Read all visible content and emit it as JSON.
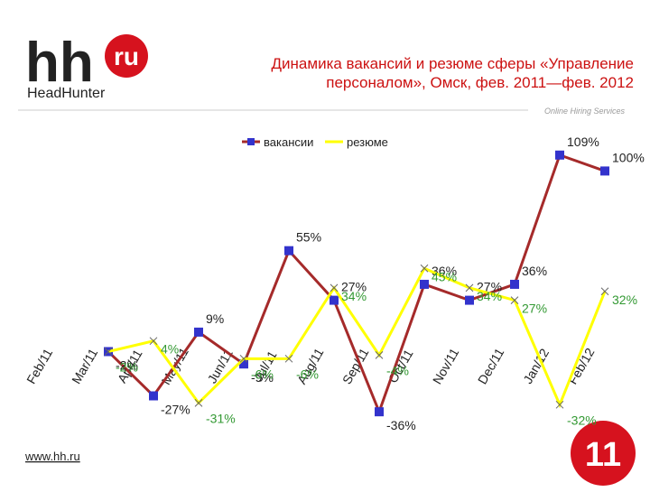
{
  "header": {
    "logo_hh": "hh",
    "logo_ru": "ru",
    "logo_name": "HeadHunter",
    "tagline": "Online Hiring Services"
  },
  "footer": {
    "url": "www.hh.ru",
    "page": "11"
  },
  "chart_data": {
    "type": "line",
    "title": "Динамика вакансий и резюме  сферы «Управление персоналом», Омск, фев. 2011—фев. 2012",
    "categories": [
      "Feb/11",
      "Mar/11",
      "Apr/11",
      "May/11",
      "Jun/11",
      "Jul/11",
      "Aug/11",
      "Sep/11",
      "Oct/11",
      "Nov/11",
      "Dec/11",
      "Jan/12",
      "Feb/12"
    ],
    "ylim": [
      -40,
      115
    ],
    "series": [
      {
        "name": "вакансии",
        "color": "#a52a2a",
        "marker_color": "#3333cc",
        "values": [
          null,
          -2,
          -27,
          9,
          -9,
          55,
          27,
          -36,
          36,
          27,
          36,
          109,
          100
        ],
        "value_labels": [
          null,
          "-2%",
          "-27%",
          "9%",
          "-9%",
          "55%",
          "27%",
          "-36%",
          "36%",
          "27%",
          "36%",
          "109%",
          "100%"
        ]
      },
      {
        "name": "резюме",
        "color": "#ffff00",
        "label_color": "#339933",
        "values": [
          null,
          -2,
          4,
          -31,
          -6,
          -6,
          34,
          -4,
          45,
          34,
          27,
          -32,
          32
        ],
        "value_labels": [
          null,
          "-2%",
          "4%",
          "-31%",
          "-6%",
          "-6%",
          "34%",
          "-4%",
          "45%",
          "34%",
          "27%",
          "-32%",
          "32%"
        ]
      }
    ]
  }
}
